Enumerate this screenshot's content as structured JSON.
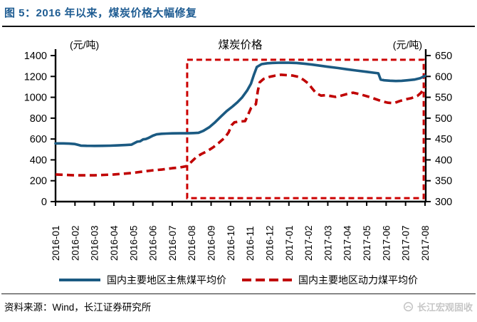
{
  "header": {
    "title": "图 5：2016 年以来，煤炭价格大幅修复"
  },
  "colors": {
    "title": "#1e5c92",
    "rule": "#111111",
    "coking_blue": "#1b5a82",
    "thermal_red": "#c00000"
  },
  "chart_data": {
    "type": "line",
    "title": "煤炭价格",
    "x_note": "x = month index, 0 = 2016-01, weekly-resolution curve read from chart",
    "categories": [
      "2016-01",
      "2016-02",
      "2016-03",
      "2016-04",
      "2016-05",
      "2016-06",
      "2016-07",
      "2016-08",
      "2016-09",
      "2016-10",
      "2016-11",
      "2016-12",
      "2017-01",
      "2017-02",
      "2017-03",
      "2017-04",
      "2017-05",
      "2017-06",
      "2017-07",
      "2017-08"
    ],
    "left_axis": {
      "unit": "(元/吨)",
      "min": 0,
      "max": 1400,
      "tick_step": 200,
      "ticks": [
        0,
        200,
        400,
        600,
        800,
        1000,
        1200,
        1400
      ]
    },
    "right_axis": {
      "unit": "(元/吨)",
      "min": 300,
      "max": 650,
      "tick_step": 50,
      "ticks": [
        300,
        350,
        400,
        450,
        500,
        550,
        600,
        650
      ]
    },
    "grid": false,
    "legend_position": "bottom",
    "highlight_box": {
      "from_index": 6.77,
      "to_index": 18.93,
      "top_left_axis_value": 1360,
      "bottom_left_axis_value": 34,
      "color": "#cc0000",
      "meaning": "since 2016-08 price repair period"
    },
    "series": [
      {
        "name": "国内主要地区主焦煤平均价",
        "axis": "left",
        "style": "solid",
        "color": "#1b5a82",
        "points": [
          [
            0,
            558
          ],
          [
            0.4,
            558
          ],
          [
            0.7,
            556
          ],
          [
            1.0,
            552
          ],
          [
            1.15,
            544
          ],
          [
            1.3,
            537
          ],
          [
            1.6,
            535
          ],
          [
            2.0,
            534
          ],
          [
            2.4,
            535
          ],
          [
            2.8,
            536
          ],
          [
            3.2,
            539
          ],
          [
            3.6,
            542
          ],
          [
            3.9,
            546
          ],
          [
            4.05,
            560
          ],
          [
            4.2,
            574
          ],
          [
            4.35,
            578
          ],
          [
            4.5,
            596
          ],
          [
            4.65,
            600
          ],
          [
            4.8,
            612
          ],
          [
            5.0,
            632
          ],
          [
            5.2,
            645
          ],
          [
            5.45,
            650
          ],
          [
            5.7,
            652
          ],
          [
            6.0,
            654
          ],
          [
            6.4,
            655
          ],
          [
            6.8,
            655
          ],
          [
            7.1,
            657
          ],
          [
            7.35,
            660
          ],
          [
            7.6,
            678
          ],
          [
            7.9,
            712
          ],
          [
            8.2,
            760
          ],
          [
            8.5,
            815
          ],
          [
            8.8,
            868
          ],
          [
            9.1,
            912
          ],
          [
            9.35,
            952
          ],
          [
            9.6,
            1000
          ],
          [
            9.85,
            1065
          ],
          [
            10.05,
            1130
          ],
          [
            10.2,
            1215
          ],
          [
            10.35,
            1290
          ],
          [
            10.6,
            1318
          ],
          [
            10.9,
            1326
          ],
          [
            11.2,
            1330
          ],
          [
            11.6,
            1332
          ],
          [
            12.0,
            1331
          ],
          [
            12.4,
            1329
          ],
          [
            12.8,
            1322
          ],
          [
            13.2,
            1313
          ],
          [
            13.6,
            1303
          ],
          [
            14.0,
            1293
          ],
          [
            14.5,
            1281
          ],
          [
            15.0,
            1268
          ],
          [
            15.5,
            1256
          ],
          [
            16.0,
            1244
          ],
          [
            16.3,
            1237
          ],
          [
            16.6,
            1230
          ],
          [
            16.72,
            1170
          ],
          [
            16.9,
            1163
          ],
          [
            17.2,
            1159
          ],
          [
            17.5,
            1156
          ],
          [
            17.8,
            1158
          ],
          [
            18.1,
            1163
          ],
          [
            18.45,
            1170
          ],
          [
            18.75,
            1183
          ],
          [
            19.0,
            1206
          ]
        ]
      },
      {
        "name": "国内主要地区动力煤平均价",
        "axis": "right",
        "style": "dashed",
        "color": "#c00000",
        "points": [
          [
            0,
            365
          ],
          [
            0.5,
            364
          ],
          [
            1.0,
            363
          ],
          [
            1.5,
            363
          ],
          [
            2.0,
            363
          ],
          [
            2.5,
            364
          ],
          [
            3.0,
            365
          ],
          [
            3.5,
            367
          ],
          [
            4.0,
            369
          ],
          [
            4.5,
            372
          ],
          [
            5.0,
            375
          ],
          [
            5.5,
            377
          ],
          [
            6.0,
            380
          ],
          [
            6.4,
            382
          ],
          [
            6.75,
            385
          ],
          [
            7.0,
            396
          ],
          [
            7.25,
            407
          ],
          [
            7.5,
            414
          ],
          [
            7.8,
            421
          ],
          [
            8.1,
            430
          ],
          [
            8.4,
            441
          ],
          [
            8.7,
            453
          ],
          [
            8.9,
            466
          ],
          [
            9.05,
            483
          ],
          [
            9.2,
            490
          ],
          [
            9.5,
            492
          ],
          [
            9.75,
            493
          ],
          [
            9.9,
            508
          ],
          [
            10.05,
            524
          ],
          [
            10.2,
            531
          ],
          [
            10.3,
            533
          ],
          [
            10.4,
            565
          ],
          [
            10.5,
            586
          ],
          [
            10.7,
            594
          ],
          [
            11.0,
            599
          ],
          [
            11.3,
            602
          ],
          [
            11.6,
            604
          ],
          [
            11.9,
            603
          ],
          [
            12.2,
            602
          ],
          [
            12.5,
            599
          ],
          [
            12.75,
            592
          ],
          [
            13.0,
            583
          ],
          [
            13.2,
            571
          ],
          [
            13.4,
            560
          ],
          [
            13.65,
            554
          ],
          [
            13.9,
            555
          ],
          [
            14.15,
            553
          ],
          [
            14.4,
            551
          ],
          [
            14.7,
            554
          ],
          [
            15.0,
            558
          ],
          [
            15.3,
            561
          ],
          [
            15.6,
            558
          ],
          [
            15.9,
            554
          ],
          [
            16.2,
            550
          ],
          [
            16.5,
            545
          ],
          [
            16.8,
            540
          ],
          [
            17.1,
            537
          ],
          [
            17.4,
            536
          ],
          [
            17.7,
            541
          ],
          [
            18.0,
            545
          ],
          [
            18.3,
            548
          ],
          [
            18.6,
            553
          ],
          [
            18.8,
            561
          ],
          [
            19.0,
            576
          ]
        ]
      }
    ]
  },
  "footer": {
    "source": "资料来源：Wind，长江证券研究所",
    "watermark": "长江宏观固收"
  }
}
